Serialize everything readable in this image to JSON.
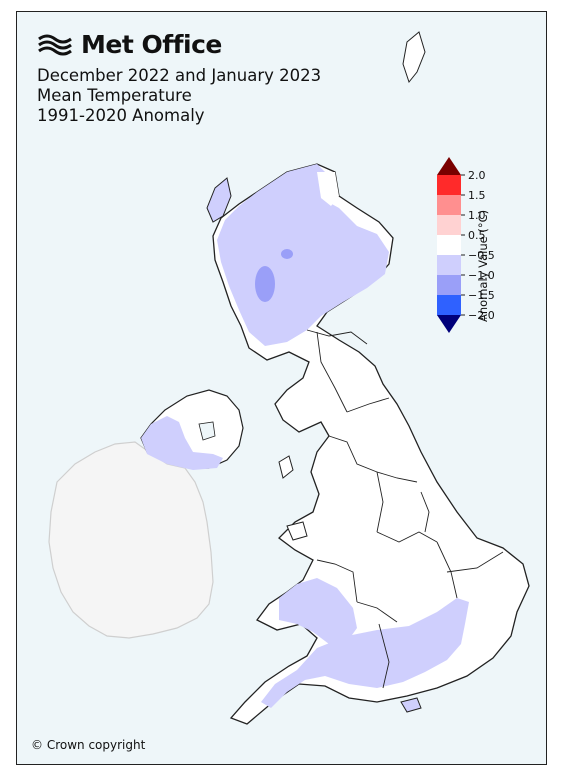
{
  "brand": {
    "name": "Met Office",
    "logo_icon": "met-office-swirl-icon"
  },
  "title": {
    "line1": "December 2022 and January 2023",
    "line2": "Mean Temperature",
    "line3": "1991-2020 Anomaly"
  },
  "legend": {
    "label": "Anomaly Value (°C)",
    "ticks": [
      "2.0",
      "1.5",
      "1.0",
      "0.5",
      "−0.5",
      "−1.0",
      "−1.5",
      "−2.0"
    ],
    "bins": [
      {
        "color": "#ff2a2a"
      },
      {
        "color": "#ff8f8f"
      },
      {
        "color": "#ffd2d2"
      },
      {
        "color": "#ffffff"
      },
      {
        "color": "#cfcffd"
      },
      {
        "color": "#9a9ff8"
      },
      {
        "color": "#2f61ff"
      }
    ],
    "arrow_top_color": "#7a0000",
    "arrow_bottom_color": "#00007a"
  },
  "colors": {
    "sea": "#eef6f9",
    "land_uk": "#ffffff",
    "land_ireland": "#f5f5f5",
    "anomaly_light": "#cfcffd",
    "anomaly_medium": "#9a9ff8"
  },
  "copyright": "© Crown copyright"
}
